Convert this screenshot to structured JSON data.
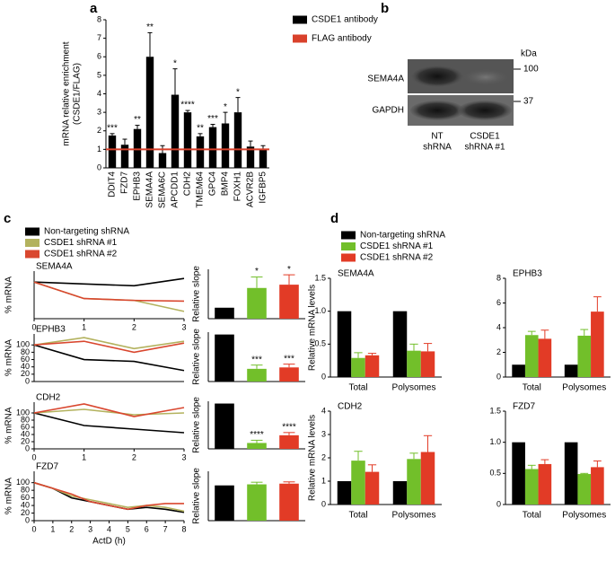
{
  "panel_labels": [
    "a",
    "b",
    "c",
    "d"
  ],
  "blot": {
    "unit": "kDa",
    "markers": [
      "100",
      "37"
    ],
    "rows": [
      "SEMA4A",
      "GAPDH"
    ],
    "lanes": [
      [
        "NT",
        "shRNA"
      ],
      [
        "CSDE1",
        "shRNA #1"
      ]
    ]
  },
  "chart_data": [
    {
      "type": "bar",
      "ylabel": [
        "mRNA relative enrichment",
        "(CSDE1/FLAG)"
      ],
      "legend": true,
      "x_label_rotation": -90,
      "categories": [
        "DDIT4",
        "FZD7",
        "EPHB3",
        "SEMA4A",
        "SEMA6C",
        "APCDD1",
        "CDH2",
        "TMEM64",
        "GPC4",
        "BMP4",
        "FOXH1",
        "ACVR2B",
        "IGFBP5"
      ],
      "series": [
        {
          "name": "CSDE1 antibody",
          "color": "#000000",
          "values": [
            1.75,
            1.25,
            2.1,
            6.0,
            0.8,
            3.95,
            3.0,
            1.7,
            2.2,
            2.4,
            3.0,
            1.15,
            1.0
          ],
          "errors": [
            0.1,
            0.3,
            0.2,
            1.3,
            0.4,
            1.4,
            0.1,
            0.15,
            0.15,
            0.6,
            0.8,
            0.3,
            0.2
          ],
          "annotations": [
            "***",
            null,
            "**",
            "**",
            null,
            "*",
            "****",
            "**",
            "***",
            "*",
            "*",
            null,
            null
          ]
        }
      ],
      "reference_line": {
        "name": "FLAG antibody",
        "color": "#d9412b",
        "value": 1
      },
      "ylim": [
        0,
        8
      ],
      "yticks": [
        0,
        1,
        2,
        3,
        4,
        5,
        6,
        7,
        8
      ]
    },
    {
      "type": "line",
      "title": "SEMA4A",
      "ylabel": "% mRNA",
      "legend": true,
      "x": [
        0,
        1,
        2,
        3
      ],
      "xlim": [
        0,
        3
      ],
      "xticks": [
        0,
        1,
        2,
        3
      ],
      "ylim": [
        0,
        130
      ],
      "series": [
        {
          "name": "Non-targeting shRNA",
          "color": "#000000",
          "values": [
            100,
            95,
            90,
            110
          ]
        },
        {
          "name": "CSDE1 shRNA #1",
          "color": "#b3b25e",
          "values": [
            100,
            55,
            50,
            20
          ]
        },
        {
          "name": "CSDE1 shRNA #2",
          "color": "#d9472f",
          "values": [
            100,
            55,
            50,
            48
          ]
        }
      ]
    },
    {
      "type": "line",
      "title": "EPHB3",
      "ylabel": "% mRNA",
      "x": [
        0,
        1,
        2,
        3
      ],
      "xlim": [
        0,
        3
      ],
      "ylim": [
        0,
        130
      ],
      "yticks": [
        0,
        20,
        40,
        60,
        80,
        100
      ],
      "series": [
        {
          "color": "#000000",
          "values": [
            100,
            60,
            55,
            30
          ]
        },
        {
          "color": "#b3b25e",
          "values": [
            100,
            120,
            90,
            110
          ]
        },
        {
          "color": "#d9472f",
          "values": [
            100,
            110,
            80,
            105
          ]
        }
      ]
    },
    {
      "type": "line",
      "title": "CDH2",
      "ylabel": "% mRNA",
      "x": [
        0,
        1,
        2,
        3
      ],
      "xlim": [
        0,
        3
      ],
      "xticks": [
        0,
        1,
        2,
        3
      ],
      "ylim": [
        0,
        130
      ],
      "yticks": [
        0,
        20,
        40,
        60,
        80,
        100
      ],
      "series": [
        {
          "color": "#000000",
          "values": [
            100,
            65,
            55,
            45
          ]
        },
        {
          "color": "#b3b25e",
          "values": [
            100,
            110,
            95,
            100
          ]
        },
        {
          "color": "#d9472f",
          "values": [
            100,
            125,
            90,
            115
          ]
        }
      ]
    },
    {
      "type": "line",
      "title": "FZD7",
      "ylabel": "% mRNA",
      "xlabel": "ActD (h)",
      "x": [
        0,
        1,
        2,
        3,
        4,
        5,
        6,
        7,
        8
      ],
      "xlim": [
        0,
        8
      ],
      "xticks": [
        0,
        1,
        2,
        3,
        4,
        5,
        6,
        7,
        8
      ],
      "ylim": [
        0,
        130
      ],
      "yticks": [
        0,
        20,
        40,
        60,
        80,
        100
      ],
      "series": [
        {
          "color": "#000000",
          "values": [
            100,
            85,
            60,
            50,
            40,
            30,
            35,
            30,
            22
          ]
        },
        {
          "color": "#b3b25e",
          "values": [
            100,
            85,
            65,
            55,
            45,
            35,
            40,
            35,
            25
          ]
        },
        {
          "color": "#d9472f",
          "values": [
            100,
            85,
            70,
            50,
            40,
            30,
            40,
            45,
            45
          ]
        }
      ]
    },
    {
      "type": "bar",
      "ylabel": "Relative slope",
      "ylim": [
        0,
        4.5
      ],
      "series": [
        {
          "colors": [
            "#000000",
            "#72bf2a",
            "#e23b26"
          ],
          "values": [
            1,
            2.8,
            3.1
          ],
          "errors": [
            null,
            1.0,
            0.9
          ],
          "annotations": [
            null,
            "*",
            "*"
          ]
        }
      ]
    },
    {
      "type": "bar",
      "ylabel": "Relative slope",
      "ylim": [
        0,
        1.05
      ],
      "series": [
        {
          "colors": [
            "#000000",
            "#72bf2a",
            "#e23b26"
          ],
          "values": [
            1,
            0.27,
            0.3
          ],
          "errors": [
            null,
            0.08,
            0.07
          ],
          "annotations": [
            null,
            "***",
            "***"
          ]
        }
      ]
    },
    {
      "type": "bar",
      "ylabel": "Relative slope",
      "ylim": [
        0,
        1.05
      ],
      "series": [
        {
          "colors": [
            "#000000",
            "#72bf2a",
            "#e23b26"
          ],
          "values": [
            1,
            0.13,
            0.3
          ],
          "errors": [
            null,
            0.06,
            0.06
          ],
          "annotations": [
            null,
            "****",
            "****"
          ]
        }
      ]
    },
    {
      "type": "bar",
      "ylabel": "Relative slope",
      "ylim": [
        0,
        1.4
      ],
      "series": [
        {
          "colors": [
            "#000000",
            "#72bf2a",
            "#e23b26"
          ],
          "values": [
            1,
            1.03,
            1.05
          ],
          "errors": [
            null,
            0.06,
            0.05
          ]
        }
      ]
    },
    {
      "type": "bar",
      "title": "SEMA4A",
      "ylabel": "Relative mRNA levels",
      "legend": true,
      "categories": [
        "Total",
        "Polysomes"
      ],
      "ylim": [
        0,
        1.5
      ],
      "yticks": [
        0,
        0.5,
        {
          "value": 1,
          "label": "1.0"
        },
        1.5
      ],
      "series": [
        {
          "name": "Non-targeting shRNA",
          "color": "#000000",
          "values": [
            1,
            1
          ]
        },
        {
          "name": "CSDE1 shRNA #1",
          "color": "#72bf2a",
          "values": [
            0.29,
            0.4
          ],
          "errors": [
            0.08,
            0.1
          ]
        },
        {
          "name": "CSDE1 shRNA #2",
          "color": "#e23b26",
          "values": [
            0.33,
            0.39
          ],
          "errors": [
            0.03,
            0.12
          ]
        }
      ]
    },
    {
      "type": "bar",
      "title": "EPHB3",
      "categories": [
        "Total",
        "Polysomes"
      ],
      "ylim": [
        0,
        8
      ],
      "yticks": [
        0,
        2,
        4,
        6,
        8
      ],
      "series": [
        {
          "color": "#000000",
          "values": [
            1,
            1
          ]
        },
        {
          "color": "#72bf2a",
          "values": [
            3.4,
            3.35
          ],
          "errors": [
            0.3,
            0.5
          ]
        },
        {
          "color": "#e23b26",
          "values": [
            3.1,
            5.3
          ],
          "errors": [
            0.7,
            1.2
          ]
        }
      ]
    },
    {
      "type": "bar",
      "title": "CDH2",
      "ylabel": "Relative mRNA levels",
      "categories": [
        "Total",
        "Polysomes"
      ],
      "ylim": [
        0,
        4
      ],
      "yticks": [
        0,
        1,
        2,
        3,
        4
      ],
      "series": [
        {
          "color": "#000000",
          "values": [
            1,
            1
          ]
        },
        {
          "color": "#72bf2a",
          "values": [
            1.88,
            1.95
          ],
          "errors": [
            0.4,
            0.25
          ]
        },
        {
          "color": "#e23b26",
          "values": [
            1.4,
            2.25
          ],
          "errors": [
            0.3,
            0.7
          ]
        }
      ]
    },
    {
      "type": "bar",
      "title": "FZD7",
      "categories": [
        "Total",
        "Polysomes"
      ],
      "ylim": [
        0,
        1.5
      ],
      "yticks": [
        0,
        0.5,
        {
          "value": 1,
          "label": "1.0"
        },
        1.5
      ],
      "series": [
        {
          "color": "#000000",
          "values": [
            1,
            1
          ]
        },
        {
          "color": "#72bf2a",
          "values": [
            0.57,
            0.49
          ],
          "errors": [
            0.06,
            0.01
          ]
        },
        {
          "color": "#e23b26",
          "values": [
            0.65,
            0.6
          ],
          "errors": [
            0.07,
            0.1
          ]
        }
      ]
    }
  ]
}
